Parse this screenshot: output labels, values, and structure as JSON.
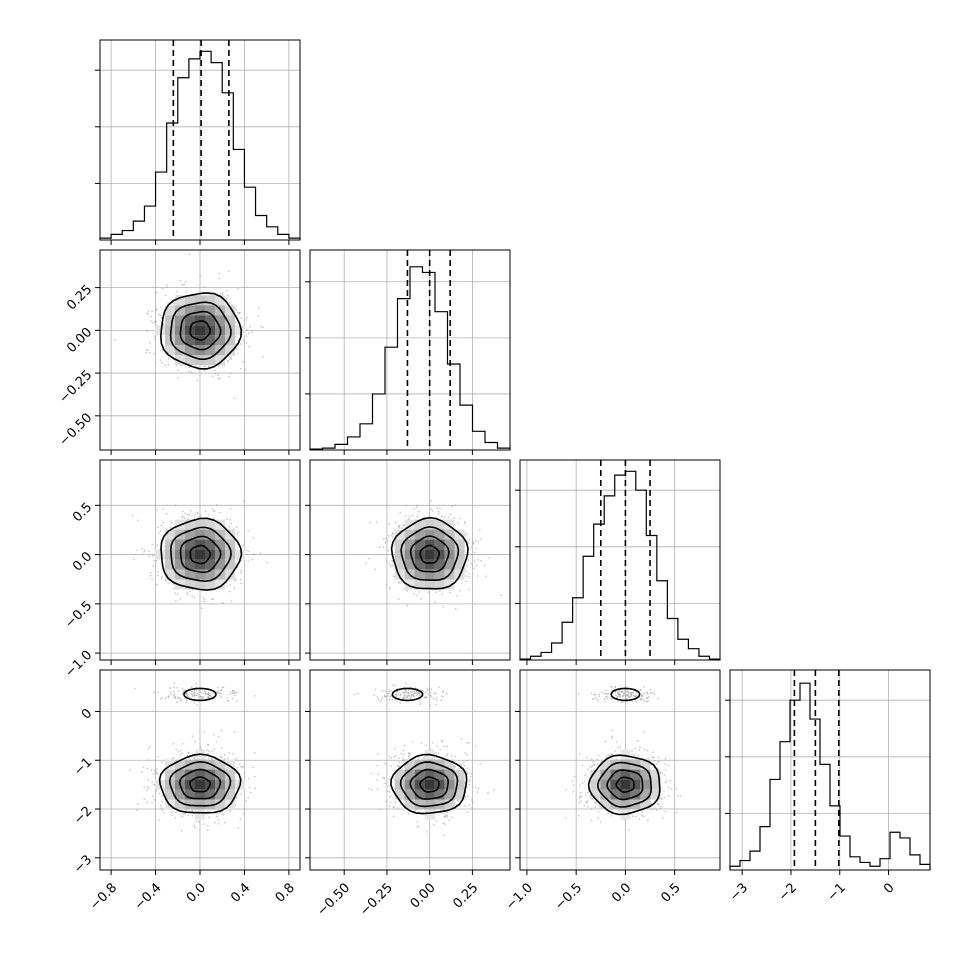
{
  "chart_data": {
    "type": "corner",
    "title": "",
    "params": [
      {
        "range": [
          -0.9,
          0.9
        ],
        "ticks": [
          -0.8,
          -0.4,
          0.0,
          0.4,
          0.8
        ],
        "tick_labels": [
          "−0.8",
          "−0.4",
          "0.0",
          "0.4",
          "0.8"
        ],
        "quantiles": [
          -0.24,
          0.01,
          0.26
        ]
      },
      {
        "range": [
          -0.7,
          0.47
        ],
        "ticks": [
          -0.5,
          -0.25,
          0.0,
          0.25
        ],
        "tick_labels": [
          "−0.50",
          "−0.25",
          "0.00",
          "0.25"
        ],
        "quantiles": [
          -0.13,
          0.0,
          0.12
        ]
      },
      {
        "range": [
          -1.07,
          0.96
        ],
        "ticks": [
          -1.0,
          -0.5,
          0.0,
          0.5
        ],
        "tick_labels": [
          "−1.0",
          "−0.5",
          "0.0",
          "0.5"
        ],
        "quantiles": [
          -0.25,
          0.0,
          0.25
        ]
      },
      {
        "range": [
          -3.25,
          0.85
        ],
        "ticks": [
          -3,
          -2,
          -1,
          0
        ],
        "tick_labels": [
          "−3",
          "−2",
          "−1",
          "0"
        ],
        "quantiles": [
          -1.93,
          -1.5,
          -1.02
        ]
      }
    ],
    "histograms": [
      {
        "counts": [
          0.01,
          0.03,
          0.05,
          0.1,
          0.18,
          0.36,
          0.62,
          0.86,
          0.96,
          1.0,
          0.94,
          0.78,
          0.48,
          0.28,
          0.13,
          0.07,
          0.03,
          0.01
        ],
        "ylim": [
          0,
          1.06
        ]
      },
      {
        "counts": [
          0.005,
          0.01,
          0.03,
          0.07,
          0.14,
          0.3,
          0.55,
          0.81,
          0.98,
          0.95,
          0.74,
          0.46,
          0.24,
          0.1,
          0.04,
          0.01
        ],
        "ylim": [
          0,
          1.07
        ]
      },
      {
        "counts": [
          0.005,
          0.02,
          0.04,
          0.09,
          0.2,
          0.33,
          0.55,
          0.72,
          0.87,
          0.98,
          1.0,
          0.9,
          0.66,
          0.42,
          0.22,
          0.11,
          0.06,
          0.02,
          0.005
        ],
        "ylim": [
          0,
          1.06
        ]
      },
      {
        "counts": [
          0.02,
          0.05,
          0.1,
          0.23,
          0.48,
          0.68,
          0.9,
          0.99,
          0.8,
          0.56,
          0.34,
          0.18,
          0.07,
          0.04,
          0.02,
          0.06,
          0.2,
          0.17,
          0.08,
          0.03
        ],
        "ylim": [
          0,
          1.06
        ]
      }
    ],
    "density_2d": [
      {
        "row": 1,
        "col": 0,
        "center": [
          0.0,
          0.0
        ],
        "sigma": [
          0.18,
          0.11
        ]
      },
      {
        "row": 2,
        "col": 0,
        "center": [
          0.0,
          0.0
        ],
        "sigma": [
          0.18,
          0.18
        ]
      },
      {
        "row": 2,
        "col": 1,
        "center": [
          0.0,
          0.0
        ],
        "sigma": [
          0.11,
          0.18
        ]
      },
      {
        "row": 3,
        "col": 0,
        "center": [
          0.0,
          -1.5
        ],
        "sigma": [
          0.18,
          0.3
        ],
        "secondary": [
          0.0,
          0.35
        ]
      },
      {
        "row": 3,
        "col": 1,
        "center": [
          0.0,
          -1.5
        ],
        "sigma": [
          0.11,
          0.3
        ],
        "secondary": [
          -0.13,
          0.35
        ]
      },
      {
        "row": 3,
        "col": 2,
        "center": [
          0.0,
          -1.5
        ],
        "sigma": [
          0.18,
          0.3
        ],
        "secondary": [
          0.0,
          0.35
        ]
      }
    ],
    "grid": true,
    "colors": {
      "line": "#000000",
      "grid": "#b0b0b0",
      "scatter": "#9a9a9a"
    }
  }
}
